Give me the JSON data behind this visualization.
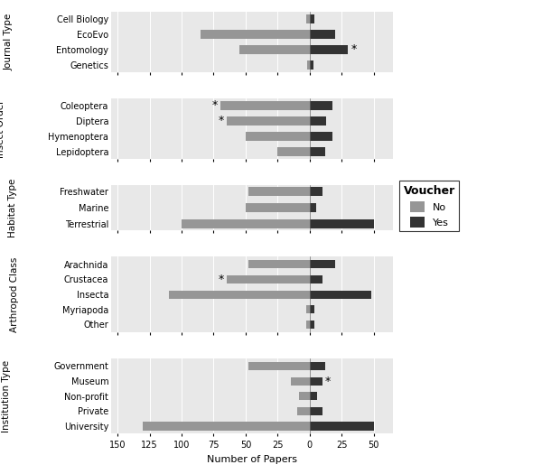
{
  "panels": [
    {
      "panel_label": "Journal Type",
      "categories": [
        "Cell Biology",
        "EcoEvo",
        "Entomology",
        "Genetics"
      ],
      "no_values": [
        -3,
        -85,
        -55,
        -2
      ],
      "yes_values": [
        4,
        20,
        30,
        3
      ],
      "asterisks": [
        {
          "cat": "Entomology",
          "side": "right"
        }
      ]
    },
    {
      "panel_label": "Insect Order",
      "categories": [
        "Coleoptera",
        "Diptera",
        "Hymenoptera",
        "Lepidoptera"
      ],
      "no_values": [
        -70,
        -65,
        -50,
        -25
      ],
      "yes_values": [
        18,
        13,
        18,
        12
      ],
      "asterisks": [
        {
          "cat": "Diptera",
          "side": "left"
        },
        {
          "cat": "Coleoptera",
          "side": "left"
        }
      ]
    },
    {
      "panel_label": "Habitat Type",
      "categories": [
        "Freshwater",
        "Marine",
        "Terrestrial"
      ],
      "no_values": [
        -48,
        -50,
        -100
      ],
      "yes_values": [
        10,
        5,
        50
      ],
      "asterisks": []
    },
    {
      "panel_label": "Arthropod Class",
      "categories": [
        "Arachnida",
        "Crustacea",
        "Insecta",
        "Myriapoda",
        "Other"
      ],
      "no_values": [
        -48,
        -65,
        -110,
        -3,
        -3
      ],
      "yes_values": [
        20,
        10,
        48,
        4,
        4
      ],
      "asterisks": [
        {
          "cat": "Crustacea",
          "side": "left"
        }
      ]
    },
    {
      "panel_label": "Institution Type",
      "categories": [
        "Government",
        "Museum",
        "Non-profit",
        "Private",
        "University"
      ],
      "no_values": [
        -48,
        -15,
        -8,
        -10,
        -130
      ],
      "yes_values": [
        12,
        10,
        6,
        10,
        50
      ],
      "asterisks": [
        {
          "cat": "Museum",
          "side": "right"
        }
      ]
    }
  ],
  "xlim": [
    -155,
    65
  ],
  "xtick_positions": [
    -150,
    -125,
    -100,
    -75,
    -50,
    -25,
    0,
    25,
    50
  ],
  "xtick_labels": [
    "150",
    "125",
    "100",
    "75",
    "50",
    "25",
    "0",
    "25",
    "50"
  ],
  "xlabel": "Number of Papers",
  "color_no": "#969696",
  "color_yes": "#333333",
  "panel_bg": "#e8e8e8",
  "bar_height": 0.55,
  "legend_title": "Voucher",
  "legend_no": "No",
  "legend_yes": "Yes",
  "heights": [
    4,
    4,
    3,
    5,
    5
  ]
}
